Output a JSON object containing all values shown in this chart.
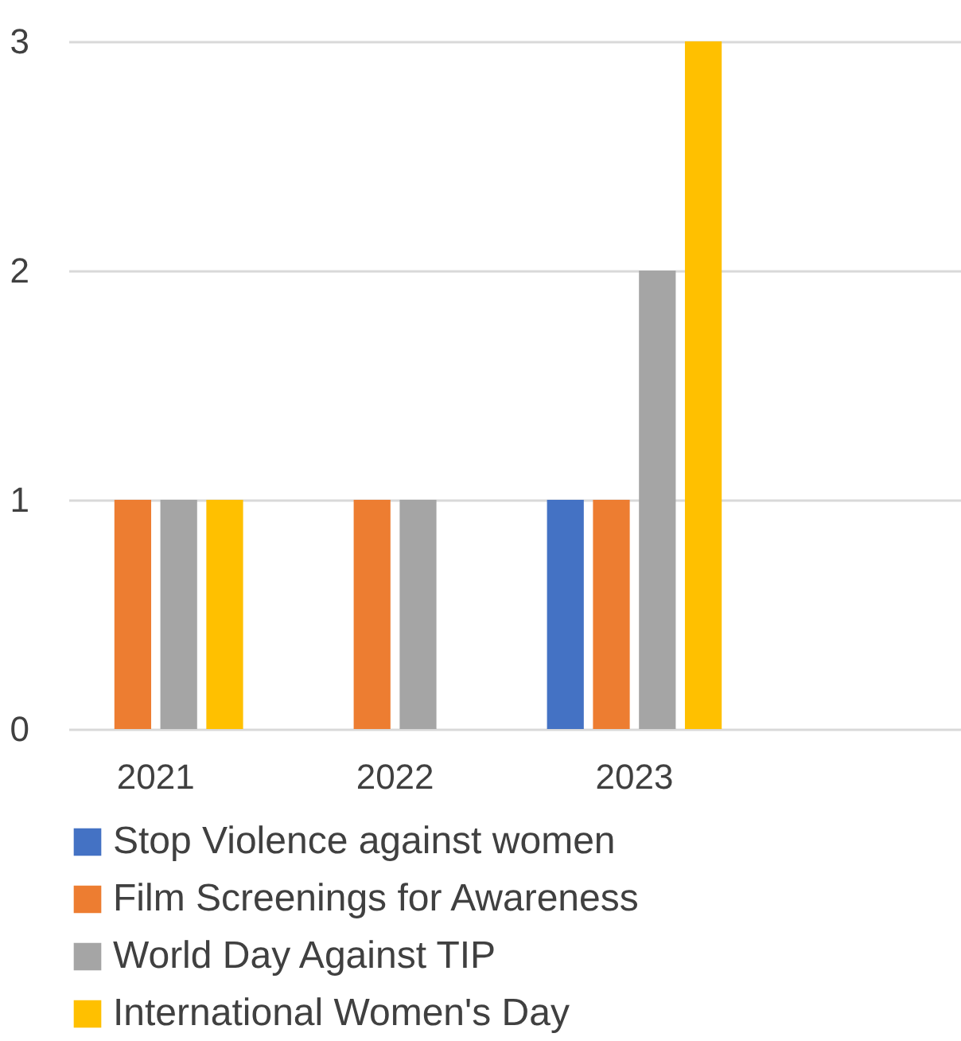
{
  "chart_data": {
    "type": "bar",
    "categories": [
      "2021",
      "2022",
      "2023",
      null
    ],
    "series": [
      {
        "name": "Stop Violence against women",
        "color": "#4472c4",
        "values": [
          null,
          null,
          1,
          null
        ]
      },
      {
        "name": "Film Screenings for Awareness",
        "color": "#ed7d31",
        "values": [
          1,
          1,
          1,
          null
        ]
      },
      {
        "name": "World Day Against TIP",
        "color": "#a5a5a5",
        "values": [
          1,
          1,
          2,
          null
        ]
      },
      {
        "name": "International Women's Day",
        "color": "#ffc000",
        "values": [
          1,
          null,
          3,
          null
        ]
      }
    ],
    "ylim": [
      0,
      3
    ],
    "yticks": [
      0,
      1,
      2,
      3
    ],
    "grid": "y",
    "legend": "bottom"
  }
}
